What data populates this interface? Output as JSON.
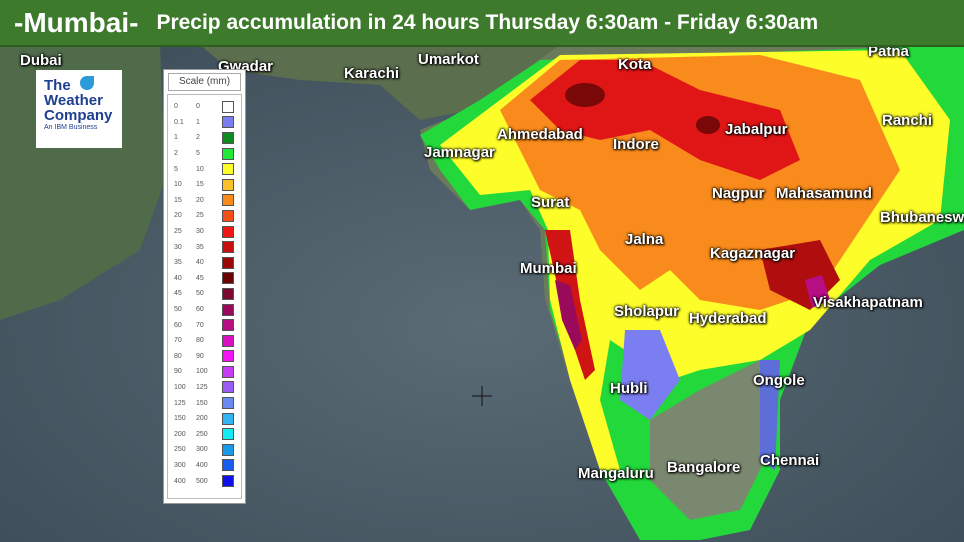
{
  "header": {
    "city": "-Mumbai-",
    "subtitle": "Precip accumulation in 24 hours  Thursday 6:30am - Friday 6:30am",
    "background": "#3d7a2c"
  },
  "logo": {
    "text": "The Weather Company An IBM Business"
  },
  "legend": {
    "title": "Scale (mm)",
    "rows": [
      {
        "from": "0",
        "to": "0",
        "color": "#ffffff"
      },
      {
        "from": "0.1",
        "to": "1",
        "color": "#7b7ef0"
      },
      {
        "from": "1",
        "to": "2",
        "color": "#0f8a1e"
      },
      {
        "from": "2",
        "to": "5",
        "color": "#22e83a"
      },
      {
        "from": "5",
        "to": "10",
        "color": "#fdfd2a"
      },
      {
        "from": "10",
        "to": "15",
        "color": "#fbc02a"
      },
      {
        "from": "15",
        "to": "20",
        "color": "#f98a1c"
      },
      {
        "from": "20",
        "to": "25",
        "color": "#f5501a"
      },
      {
        "from": "25",
        "to": "30",
        "color": "#f01616"
      },
      {
        "from": "30",
        "to": "35",
        "color": "#c80e0e"
      },
      {
        "from": "35",
        "to": "40",
        "color": "#9c0808"
      },
      {
        "from": "40",
        "to": "45",
        "color": "#6a0404"
      },
      {
        "from": "45",
        "to": "50",
        "color": "#7a0a30"
      },
      {
        "from": "50",
        "to": "60",
        "color": "#9a0a5a"
      },
      {
        "from": "60",
        "to": "70",
        "color": "#b80e84"
      },
      {
        "from": "70",
        "to": "80",
        "color": "#da10c4"
      },
      {
        "from": "80",
        "to": "90",
        "color": "#f414f4"
      },
      {
        "from": "90",
        "to": "100",
        "color": "#c83cf4"
      },
      {
        "from": "100",
        "to": "125",
        "color": "#9a5cf4"
      },
      {
        "from": "125",
        "to": "150",
        "color": "#6a8af4"
      },
      {
        "from": "150",
        "to": "200",
        "color": "#32b4f4"
      },
      {
        "from": "200",
        "to": "250",
        "color": "#10eef4"
      },
      {
        "from": "250",
        "to": "300",
        "color": "#1a9ae8"
      },
      {
        "from": "300",
        "to": "400",
        "color": "#1a5cf0"
      },
      {
        "from": "400",
        "to": "500",
        "color": "#1010e8"
      }
    ]
  },
  "cities": [
    "Dubai",
    "Gwadar",
    "Karachi",
    "Umarkot",
    "Kota",
    "Patna",
    "Ahmedabad",
    "Indore",
    "Jabalpur",
    "Ranchi",
    "Jamnagar",
    "Nagpur",
    "Mahasamund",
    "Bhubaneswar",
    "Surat",
    "Jalna",
    "Kagaznagar",
    "Mumbai",
    "Visakhapatnam",
    "Sholapur",
    "Hyderabad",
    "Ongole",
    "Hubli",
    "Chennai",
    "Bangalore",
    "Mangaluru"
  ]
}
